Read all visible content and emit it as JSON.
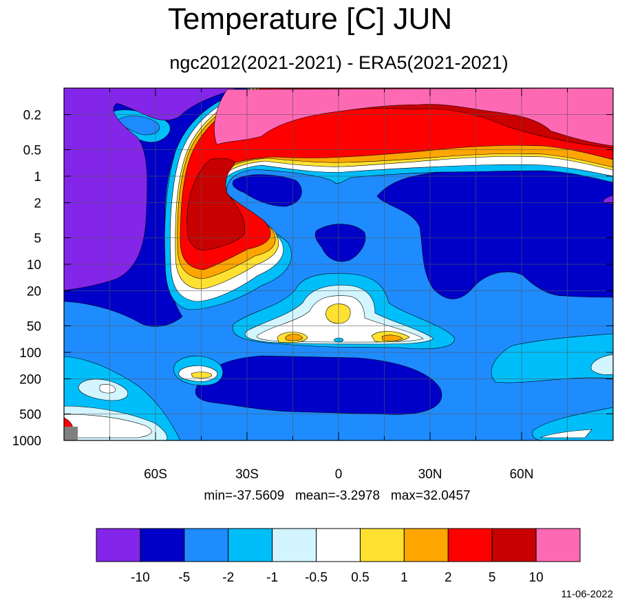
{
  "title": "Temperature [C] JUN",
  "subtitle": "ngc2012(2021-2021) - ERA5(2021-2021)",
  "stats": {
    "min": "min=-37.5609",
    "mean": "mean=-3.2978",
    "max": "max=32.0457"
  },
  "date": "11-06-2022",
  "chart_data": {
    "type": "heatmap",
    "x_axis": {
      "ticks": [
        "60S",
        "30S",
        "0",
        "30N",
        "60N"
      ],
      "values": [
        -60,
        -30,
        0,
        30,
        60
      ],
      "range": [
        -90,
        90
      ]
    },
    "y_axis": {
      "ticks": [
        "0.2",
        "0.5",
        "1",
        "2",
        "5",
        "10",
        "20",
        "50",
        "100",
        "200",
        "500",
        "1000"
      ],
      "values": [
        0.2,
        0.5,
        1,
        2,
        5,
        10,
        20,
        50,
        100,
        200,
        500,
        1000
      ],
      "scale": "log",
      "inverted": true,
      "range": [
        0.1,
        1000
      ]
    },
    "colorbar": {
      "colors": [
        "#8426EA",
        "#0000C8",
        "#1E8CFF",
        "#00BEFA",
        "#D2F5FF",
        "#FFFFFF",
        "#FFE132",
        "#FFA500",
        "#FF0000",
        "#C80000",
        "#FF69B4"
      ],
      "levels": [
        "-10",
        "-5",
        "-2",
        "-1",
        "-0.5",
        "0.5",
        "1",
        "2",
        "5",
        "10"
      ]
    },
    "grid": true
  }
}
